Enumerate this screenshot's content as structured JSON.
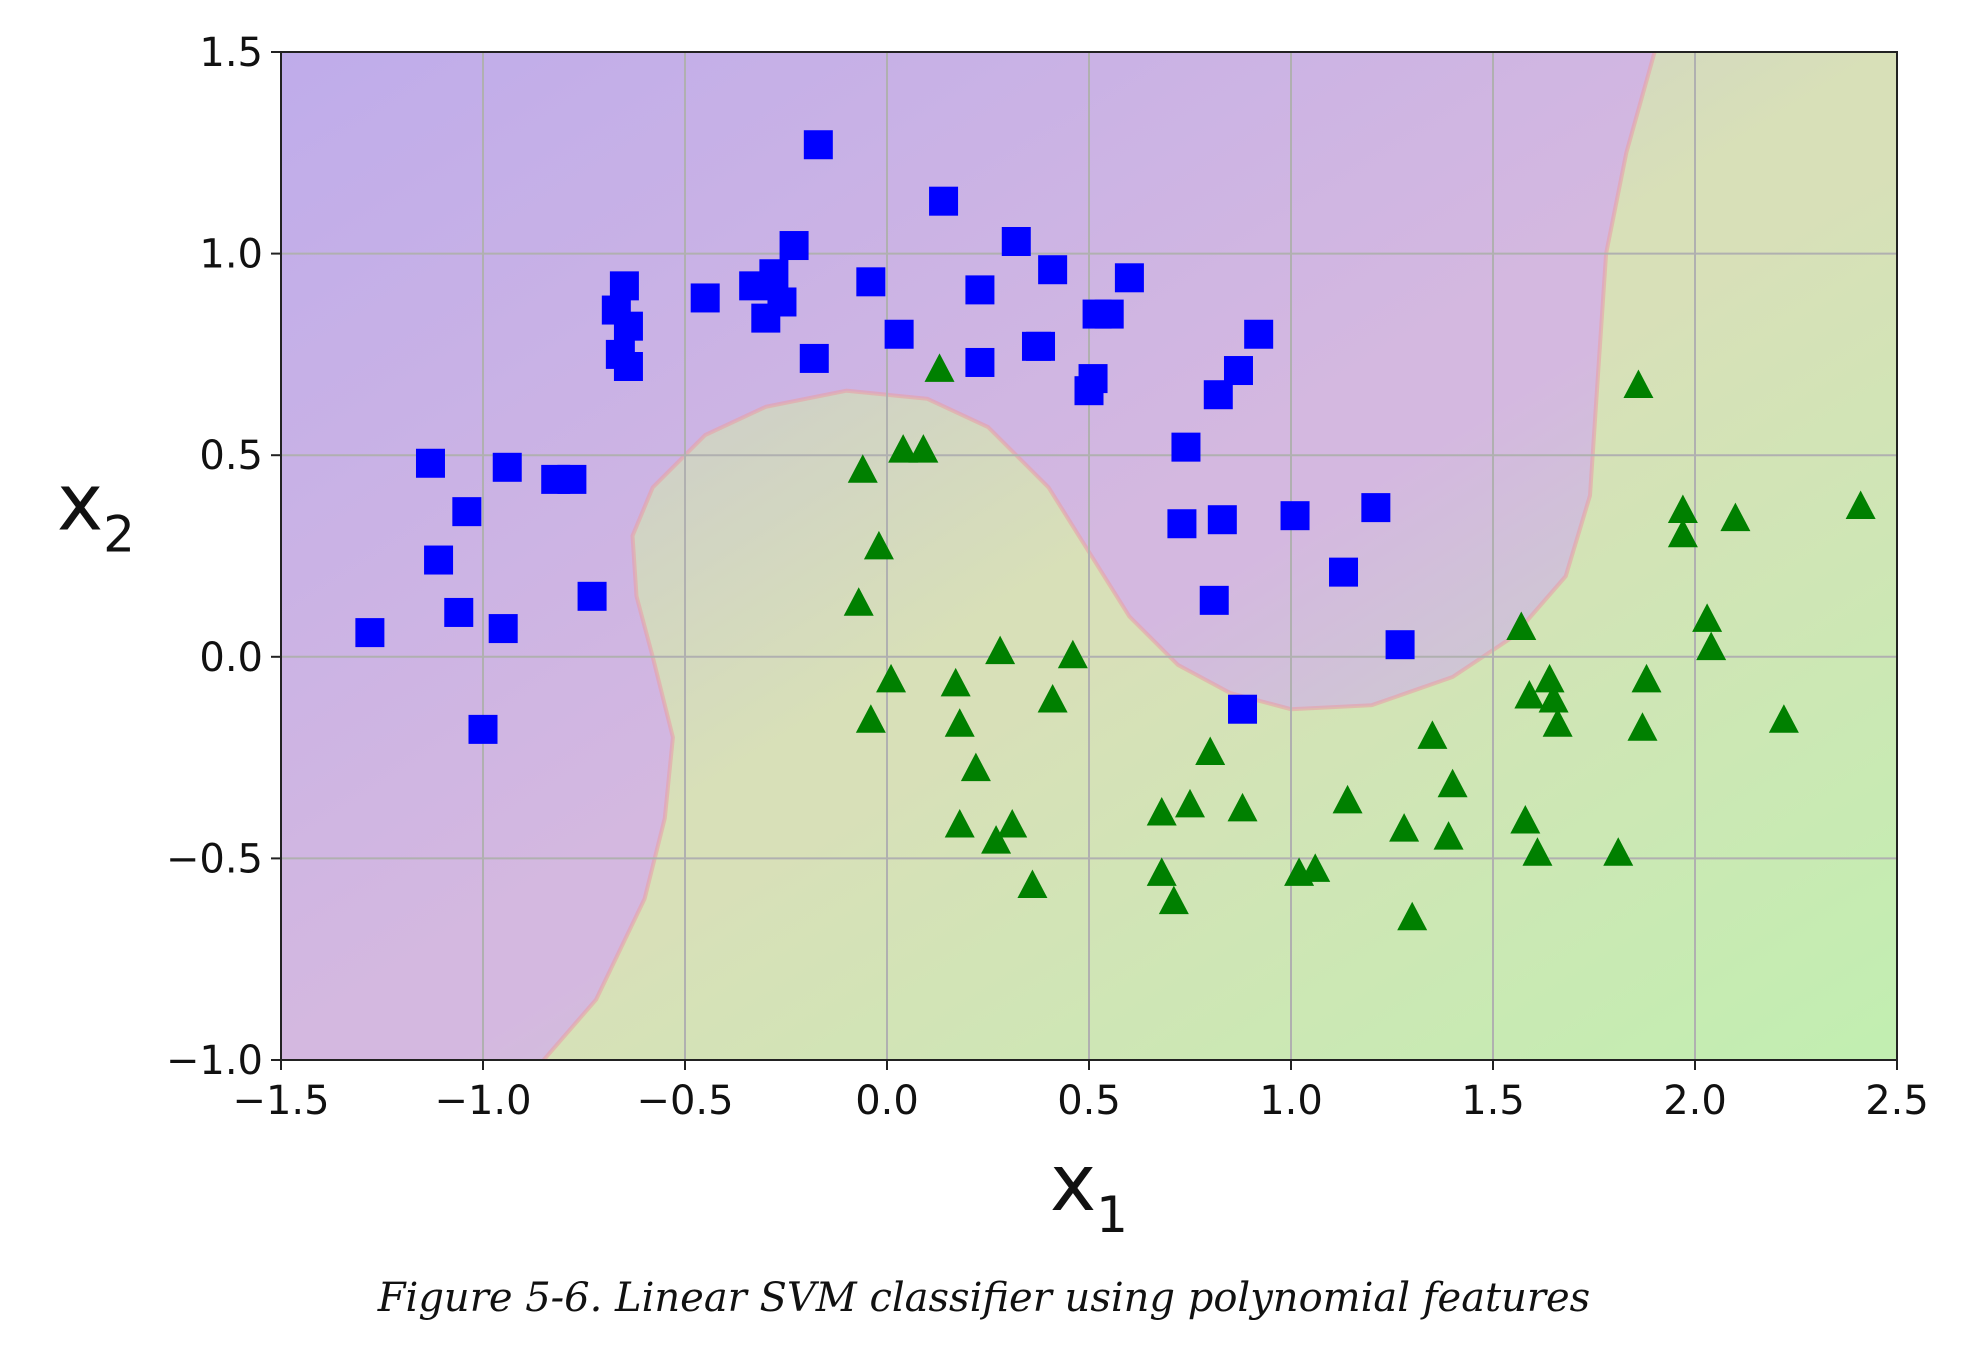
{
  "caption": "Figure 5-6. Linear SVM classifier using polynomial features",
  "chart_data": {
    "type": "scatter",
    "title": "",
    "xlabel": {
      "base": "x",
      "sub": "1"
    },
    "ylabel": {
      "base": "x",
      "sub": "2"
    },
    "xlim": [
      -1.5,
      2.5
    ],
    "ylim": [
      -1.0,
      1.5
    ],
    "x_ticks": [
      -1.5,
      -1.0,
      -0.5,
      0.0,
      0.5,
      1.0,
      1.5,
      2.0,
      2.5
    ],
    "y_ticks": [
      -1.0,
      -0.5,
      0.0,
      0.5,
      1.0,
      1.5
    ],
    "x_tick_labels": [
      "−1.5",
      "−1.0",
      "−0.5",
      "0.0",
      "0.5",
      "1.0",
      "1.5",
      "2.0",
      "2.5"
    ],
    "y_tick_labels": [
      "−1.0",
      "−0.5",
      "0.0",
      "0.5",
      "1.0",
      "1.5"
    ],
    "grid": true,
    "colors": {
      "class0_region": "#d4b8e0",
      "class1_region": "#d8e0b8",
      "class0_marker": "#0000ff",
      "class1_marker": "#008000",
      "grid": "#b0b0b0"
    },
    "decision_boundary": [
      [
        -0.85,
        -1.0
      ],
      [
        -0.72,
        -0.85
      ],
      [
        -0.6,
        -0.6
      ],
      [
        -0.55,
        -0.4
      ],
      [
        -0.53,
        -0.2
      ],
      [
        -0.58,
        0.0
      ],
      [
        -0.62,
        0.15
      ],
      [
        -0.63,
        0.3
      ],
      [
        -0.58,
        0.42
      ],
      [
        -0.45,
        0.55
      ],
      [
        -0.3,
        0.62
      ],
      [
        -0.1,
        0.66
      ],
      [
        0.1,
        0.64
      ],
      [
        0.25,
        0.57
      ],
      [
        0.4,
        0.42
      ],
      [
        0.5,
        0.26
      ],
      [
        0.6,
        0.1
      ],
      [
        0.72,
        -0.02
      ],
      [
        0.85,
        -0.09
      ],
      [
        1.0,
        -0.13
      ],
      [
        1.2,
        -0.12
      ],
      [
        1.4,
        -0.05
      ],
      [
        1.55,
        0.05
      ],
      [
        1.68,
        0.2
      ],
      [
        1.74,
        0.4
      ],
      [
        1.76,
        0.7
      ],
      [
        1.78,
        1.0
      ],
      [
        1.83,
        1.25
      ],
      [
        1.9,
        1.5
      ]
    ],
    "series": [
      {
        "marker": "square",
        "points": [
          [
            -1.28,
            0.06
          ],
          [
            -1.13,
            0.48
          ],
          [
            -1.11,
            0.24
          ],
          [
            -1.06,
            0.11
          ],
          [
            -1.04,
            0.36
          ],
          [
            -1.0,
            -0.18
          ],
          [
            -0.95,
            0.07
          ],
          [
            -0.94,
            0.47
          ],
          [
            -0.82,
            0.44
          ],
          [
            -0.78,
            0.44
          ],
          [
            -0.73,
            0.15
          ],
          [
            -0.67,
            0.86
          ],
          [
            -0.65,
            0.92
          ],
          [
            -0.64,
            0.82
          ],
          [
            -0.66,
            0.75
          ],
          [
            -0.64,
            0.72
          ],
          [
            -0.45,
            0.89
          ],
          [
            -0.33,
            0.92
          ],
          [
            -0.3,
            0.84
          ],
          [
            -0.28,
            0.95
          ],
          [
            -0.26,
            0.88
          ],
          [
            -0.23,
            1.02
          ],
          [
            -0.18,
            0.74
          ],
          [
            -0.17,
            1.27
          ],
          [
            -0.04,
            0.93
          ],
          [
            0.03,
            0.8
          ],
          [
            0.14,
            1.13
          ],
          [
            0.23,
            0.91
          ],
          [
            0.23,
            0.73
          ],
          [
            0.32,
            1.03
          ],
          [
            0.37,
            0.77
          ],
          [
            0.38,
            0.77
          ],
          [
            0.41,
            0.96
          ],
          [
            0.5,
            0.66
          ],
          [
            0.51,
            0.69
          ],
          [
            0.52,
            0.85
          ],
          [
            0.55,
            0.85
          ],
          [
            0.6,
            0.94
          ],
          [
            0.74,
            0.52
          ],
          [
            0.73,
            0.33
          ],
          [
            0.81,
            0.14
          ],
          [
            0.82,
            0.65
          ],
          [
            0.83,
            0.34
          ],
          [
            0.87,
            0.71
          ],
          [
            0.88,
            -0.13
          ],
          [
            0.92,
            0.8
          ],
          [
            1.01,
            0.35
          ],
          [
            1.13,
            0.21
          ],
          [
            1.21,
            0.37
          ],
          [
            1.27,
            0.03
          ]
        ]
      },
      {
        "marker": "triangle",
        "points": [
          [
            -0.06,
            0.46
          ],
          [
            -0.07,
            0.13
          ],
          [
            -0.02,
            0.27
          ],
          [
            -0.04,
            -0.16
          ],
          [
            0.01,
            -0.06
          ],
          [
            0.04,
            0.51
          ],
          [
            0.09,
            0.51
          ],
          [
            0.13,
            0.71
          ],
          [
            0.17,
            -0.07
          ],
          [
            0.18,
            -0.17
          ],
          [
            0.22,
            -0.28
          ],
          [
            0.18,
            -0.42
          ],
          [
            0.27,
            -0.46
          ],
          [
            0.28,
            0.01
          ],
          [
            0.31,
            -0.42
          ],
          [
            0.36,
            -0.57
          ],
          [
            0.41,
            -0.11
          ],
          [
            0.46,
            0.0
          ],
          [
            0.68,
            -0.39
          ],
          [
            0.68,
            -0.54
          ],
          [
            0.71,
            -0.61
          ],
          [
            0.75,
            -0.37
          ],
          [
            0.8,
            -0.24
          ],
          [
            0.88,
            -0.38
          ],
          [
            1.02,
            -0.54
          ],
          [
            1.06,
            -0.53
          ],
          [
            1.14,
            -0.36
          ],
          [
            1.28,
            -0.43
          ],
          [
            1.3,
            -0.65
          ],
          [
            1.35,
            -0.2
          ],
          [
            1.39,
            -0.45
          ],
          [
            1.4,
            -0.32
          ],
          [
            1.57,
            0.07
          ],
          [
            1.58,
            -0.41
          ],
          [
            1.59,
            -0.1
          ],
          [
            1.61,
            -0.49
          ],
          [
            1.64,
            -0.06
          ],
          [
            1.65,
            -0.11
          ],
          [
            1.66,
            -0.17
          ],
          [
            1.81,
            -0.49
          ],
          [
            1.86,
            0.67
          ],
          [
            1.87,
            -0.18
          ],
          [
            1.88,
            -0.06
          ],
          [
            1.97,
            0.36
          ],
          [
            1.97,
            0.3
          ],
          [
            2.03,
            0.09
          ],
          [
            2.04,
            0.02
          ],
          [
            2.1,
            0.34
          ],
          [
            2.22,
            -0.16
          ],
          [
            2.41,
            0.37
          ]
        ]
      }
    ]
  }
}
